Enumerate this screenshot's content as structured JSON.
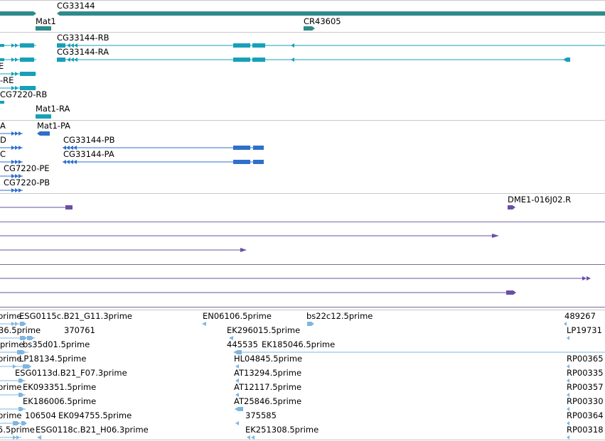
{
  "colors": {
    "gene": "#2f8a8a",
    "transcript": "#17a0b8",
    "protein": "#2f6fcb",
    "alignment": "#6a4fa6",
    "est": "#7fb6e0",
    "divider_gray": "#c8c8c8",
    "divider_purple": "#7b6aa8"
  },
  "tracks": {
    "gene_track": {
      "labels": {
        "gene_top": "CG33144",
        "gene_mat1": "Mat1",
        "gene_cr": "CR43605"
      }
    },
    "transcript_track": {
      "labels": {
        "tx_rb": "CG33144-RB",
        "tx_ra": "CG33144-RA",
        "tx_re": "-RE",
        "tx_7220rb": "CG7220-RB",
        "tx_mat1ra": "Mat1-RA"
      }
    },
    "protein_track": {
      "labels": {
        "p_a": "A",
        "p_mat1pa": "Mat1-PA",
        "p_d": "D",
        "p_pb": "CG33144-PB",
        "p_c": "C",
        "p_pa": "CG33144-PA",
        "p_7220pe": "CG7220-PE",
        "p_7220pb": "CG7220-PB"
      }
    },
    "alignment_track": {
      "labels": {
        "al_dme1": "DME1-016J02.R"
      }
    },
    "est_track": {
      "labels": {
        "e1a": "prime",
        "e1b": "ESG0115c.B21_G11.3prime",
        "e1c": "EN06106.5prime",
        "e1d": "bs22c12.5prime",
        "e1e": "489267",
        "e2a": "36.5prime",
        "e2b": "370761",
        "e2c": "EK296015.5prime",
        "e2d": "LP19731",
        "e3a": "prime",
        "e3b": "bs35d01.5prime",
        "e3c": "445535",
        "e3d": "EK185046.5prime",
        "e4a": "prime",
        "e4b": "LP18134.5prime",
        "e4c": "HL04845.5prime",
        "e4d": "RP00365",
        "e5a": "ESG0113d.B21_F07.3prime",
        "e5b": "AT13294.5prime",
        "e5c": "RP00335",
        "e6a": "prime",
        "e6b": "EK093351.5prime",
        "e6c": "AT12117.5prime",
        "e6d": "RP00357",
        "e7a": "EK186006.5prime",
        "e7b": "AT25846.5prime",
        "e7c": "RP00330",
        "e8a": "prime",
        "e8b": "106504",
        "e8c": "EK094755.5prime",
        "e8d": "375585",
        "e8e": "RP00364",
        "e9a": "5.5prime",
        "e9b": "ESG0118c.B21_H06.3prime",
        "e9c": "EK251308.5prime",
        "e9d": "RP00318"
      }
    }
  }
}
